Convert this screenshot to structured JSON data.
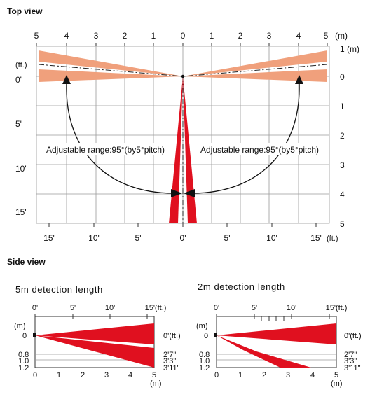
{
  "colors": {
    "pet_zone": "#f0a07c",
    "detection": "#e0101f",
    "grid": "#9a9a9a"
  },
  "top_view": {
    "title": "Top view",
    "m_unit": "(m)",
    "ft_unit": "(ft.)",
    "ft_unit_bottom": "(ft.)",
    "top_m_labels": [
      "5",
      "4",
      "3",
      "2",
      "1",
      "0",
      "1",
      "2",
      "3",
      "4",
      "5"
    ],
    "right_m_labels": [
      "1 (m)",
      "0",
      "1",
      "2",
      "3",
      "4",
      "5"
    ],
    "left_ft_labels": [
      "0'",
      "5'",
      "10'",
      "15'"
    ],
    "bottom_ft_labels": [
      "15'",
      "10'",
      "5'",
      "0'",
      "5'",
      "10'",
      "15'"
    ],
    "left_annotation": "Adjustable range:95°(by5°pitch)",
    "right_annotation": "Adjustable range:95°(by5°pitch)"
  },
  "side_view": {
    "title": "Side view",
    "left_chart": {
      "title": "5m detection length",
      "ft_labels": [
        "0'",
        "5'",
        "10'",
        "15'(ft.)"
      ],
      "m_unit_top": "(m)",
      "y_labels": [
        "0",
        "0.8",
        "1.0",
        "1.2"
      ],
      "x_labels": [
        "0",
        "1",
        "2",
        "3",
        "4",
        "5"
      ],
      "x_unit": "(m)",
      "right_labels": [
        "0'(ft.)",
        "2'7\"",
        "3'3\"",
        "3'11\""
      ]
    },
    "right_chart": {
      "title": "2m detection length",
      "ft_labels": [
        "0'",
        "5'",
        "10'",
        "15'(ft.)"
      ],
      "m_unit_top": "(m)",
      "y_labels": [
        "0",
        "0.8",
        "1.0",
        "1.2"
      ],
      "x_labels": [
        "0",
        "1",
        "2",
        "3",
        "4",
        "5"
      ],
      "x_unit": "(m)",
      "right_labels": [
        "0'(ft.)",
        "2'7\"",
        "3'3\"",
        "3'11\""
      ]
    }
  }
}
